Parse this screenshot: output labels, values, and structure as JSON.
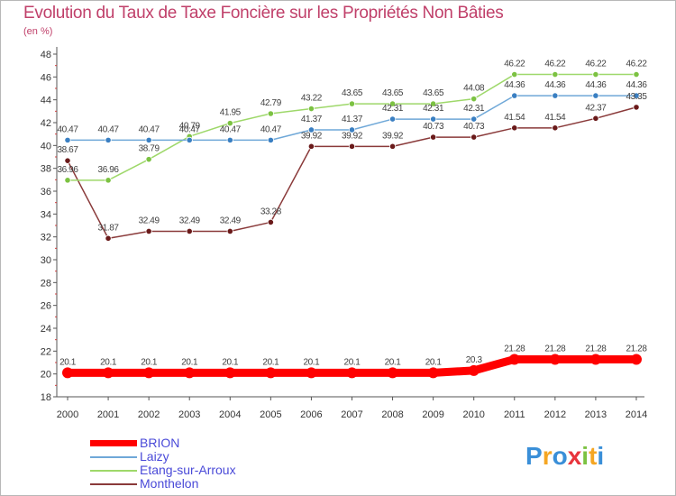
{
  "title": "Evolution du Taux de Taxe Foncière sur les Propriétés Non Bâties",
  "unit_label": "(en %)",
  "logo": {
    "text": "Proxiti",
    "colors": [
      "#3a8fd8",
      "#f5a623",
      "#3a8fd8",
      "#e8343c",
      "#7cc242",
      "#f5a623",
      "#3a8fd8"
    ]
  },
  "chart_data": {
    "type": "line",
    "title": "Evolution du Taux de Taxe Foncière sur les Propriétés Non Bâties",
    "ylabel": "(en %)",
    "xlabel": "",
    "ylim": [
      18,
      48
    ],
    "yticks": [
      18,
      20,
      22,
      24,
      26,
      28,
      30,
      32,
      34,
      36,
      38,
      40,
      42,
      44,
      46,
      48
    ],
    "x": [
      "2000",
      "2001",
      "2002",
      "2003",
      "2004",
      "2005",
      "2006",
      "2007",
      "2008",
      "2009",
      "2010",
      "2011",
      "2012",
      "2013",
      "2014"
    ],
    "series": [
      {
        "name": "BRION",
        "color": "#ff0000",
        "values": [
          20.1,
          20.1,
          20.1,
          20.1,
          20.1,
          20.1,
          20.1,
          20.1,
          20.1,
          20.1,
          20.3,
          21.28,
          21.28,
          21.28,
          21.28
        ],
        "labels": [
          "20.1",
          "20.1",
          "20.1",
          "20.1",
          "20.1",
          "20.1",
          "20.1",
          "20.1",
          "20.1",
          "20.1",
          "20.3",
          "21.28",
          "21.28",
          "21.28",
          "21.28"
        ]
      },
      {
        "name": "Laizy",
        "color": "#6fa8d8",
        "marker": "#3a7fc2",
        "values": [
          40.47,
          40.47,
          40.47,
          40.47,
          40.47,
          40.47,
          41.37,
          41.37,
          42.31,
          42.31,
          42.31,
          44.36,
          44.36,
          44.36,
          44.36
        ],
        "labels": [
          "40.47",
          "40.47",
          "40.47",
          "40.47",
          "40.47",
          "40.47",
          "41.37",
          "41.37",
          "42.31",
          "42.31",
          "42.31",
          "44.36",
          "44.36",
          "44.36",
          "44.36"
        ]
      },
      {
        "name": "Etang-sur-Arroux",
        "color": "#9ed86a",
        "marker": "#7cc242",
        "values": [
          36.96,
          36.96,
          38.79,
          40.79,
          41.95,
          42.79,
          43.22,
          43.65,
          43.65,
          43.65,
          44.08,
          46.22,
          46.22,
          46.22,
          46.22
        ],
        "labels": [
          "36.96",
          "36.96",
          "38.79",
          "40.79",
          "41.95",
          "42.79",
          "43.22",
          "43.65",
          "43.65",
          "43.65",
          "44.08",
          "46.22",
          "46.22",
          "46.22",
          "46.22"
        ]
      },
      {
        "name": "Monthelon",
        "color": "#8a3a3a",
        "marker": "#6a1a1a",
        "values": [
          38.67,
          31.87,
          32.49,
          32.49,
          32.49,
          33.28,
          39.92,
          39.92,
          39.92,
          40.73,
          40.73,
          41.54,
          41.54,
          42.37,
          43.35
        ],
        "labels": [
          "38.67",
          "31.87",
          "32.49",
          "32.49",
          "32.49",
          "33.28",
          "39.92",
          "39.92",
          "39.92",
          "40.73",
          "40.73",
          "41.54",
          "41.54",
          "42.37",
          "43.35"
        ]
      }
    ],
    "legend": [
      "BRION",
      "Laizy",
      "Etang-sur-Arroux",
      "Monthelon"
    ],
    "legend_position": "bottom-left",
    "grid": false
  }
}
